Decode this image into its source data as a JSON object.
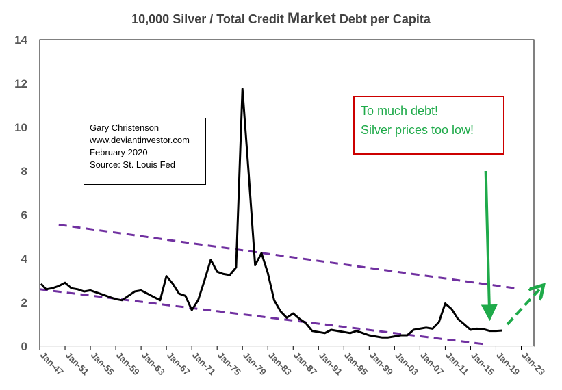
{
  "chart_data": {
    "type": "line",
    "title_parts": [
      "10,000 Silver / Total Credit ",
      "Market",
      " Debt per Capita"
    ],
    "ylim": [
      0,
      14
    ],
    "yticks": [
      "0",
      "2",
      "4",
      "6",
      "8",
      "10",
      "12",
      "14"
    ],
    "xticks": [
      "Jan-47",
      "Jan-51",
      "Jan-55",
      "Jan-59",
      "Jan-63",
      "Jan-67",
      "Jan-71",
      "Jan-75",
      "Jan-79",
      "Jan-83",
      "Jan-87",
      "Jan-91",
      "Jan-95",
      "Jan-99",
      "Jan-03",
      "Jan-07",
      "Jan-11",
      "Jan-15",
      "Jan-19",
      "Jan-23"
    ],
    "xlim": [
      1947,
      2025
    ],
    "grid": false,
    "series": [
      {
        "color": "#000000",
        "x": [
          1947.2,
          1948,
          1949,
          1950,
          1951,
          1952,
          1953,
          1954,
          1955,
          1956,
          1957,
          1958,
          1959,
          1960,
          1961,
          1962,
          1963,
          1964,
          1965,
          1966,
          1967,
          1968,
          1969,
          1970,
          1971,
          1972,
          1973,
          1974,
          1975,
          1976,
          1977,
          1978,
          1979,
          1980,
          1981,
          1982,
          1983,
          1984,
          1985,
          1986,
          1987,
          1988,
          1989,
          1990,
          1991,
          1992,
          1993,
          1994,
          1995,
          1996,
          1997,
          1998,
          1999,
          2000,
          2001,
          2002,
          2003,
          2004,
          2005,
          2006,
          2007,
          2008,
          2009,
          2010,
          2011,
          2012,
          2013,
          2014,
          2015,
          2016,
          2017,
          2018,
          2019,
          2020
        ],
        "y": [
          2.85,
          2.6,
          2.65,
          2.75,
          2.9,
          2.65,
          2.6,
          2.5,
          2.55,
          2.45,
          2.35,
          2.25,
          2.15,
          2.1,
          2.3,
          2.5,
          2.55,
          2.4,
          2.25,
          2.1,
          3.2,
          2.85,
          2.4,
          2.3,
          1.65,
          2.1,
          3.0,
          3.95,
          3.4,
          3.3,
          3.25,
          3.6,
          11.75,
          7.8,
          3.7,
          4.25,
          3.35,
          2.1,
          1.6,
          1.3,
          1.5,
          1.25,
          1.05,
          0.7,
          0.65,
          0.6,
          0.75,
          0.7,
          0.65,
          0.6,
          0.7,
          0.6,
          0.5,
          0.45,
          0.4,
          0.4,
          0.45,
          0.5,
          0.5,
          0.75,
          0.8,
          0.85,
          0.8,
          1.1,
          1.95,
          1.7,
          1.25,
          1.0,
          0.75,
          0.8,
          0.78,
          0.7,
          0.7,
          0.72
        ]
      }
    ],
    "trendlines": [
      {
        "color": "#7030a0",
        "style": "dashed",
        "x": [
          1950,
          2022
        ],
        "y": [
          5.55,
          2.65
        ]
      },
      {
        "color": "#7030a0",
        "style": "dashed",
        "x": [
          1947,
          2017
        ],
        "y": [
          2.6,
          0.1
        ]
      }
    ],
    "arrows": [
      {
        "color": "#1faa4a",
        "style": "solid",
        "from": [
          2017.4,
          8.0
        ],
        "to": [
          2018.0,
          1.4
        ]
      },
      {
        "color": "#1faa4a",
        "style": "dashed",
        "from": [
          2020.8,
          1.0
        ],
        "to": [
          2026.2,
          2.7
        ]
      }
    ],
    "annotations": {
      "author_box": [
        "Gary Christenson",
        "www.deviantinvestor.com",
        "February 2020",
        "Source: St. Louis Fed"
      ],
      "callout": [
        "To much debt!",
        "Silver prices too low!"
      ],
      "callout_border_color": "#cc0000",
      "callout_text_color": "#1faa4a"
    }
  }
}
